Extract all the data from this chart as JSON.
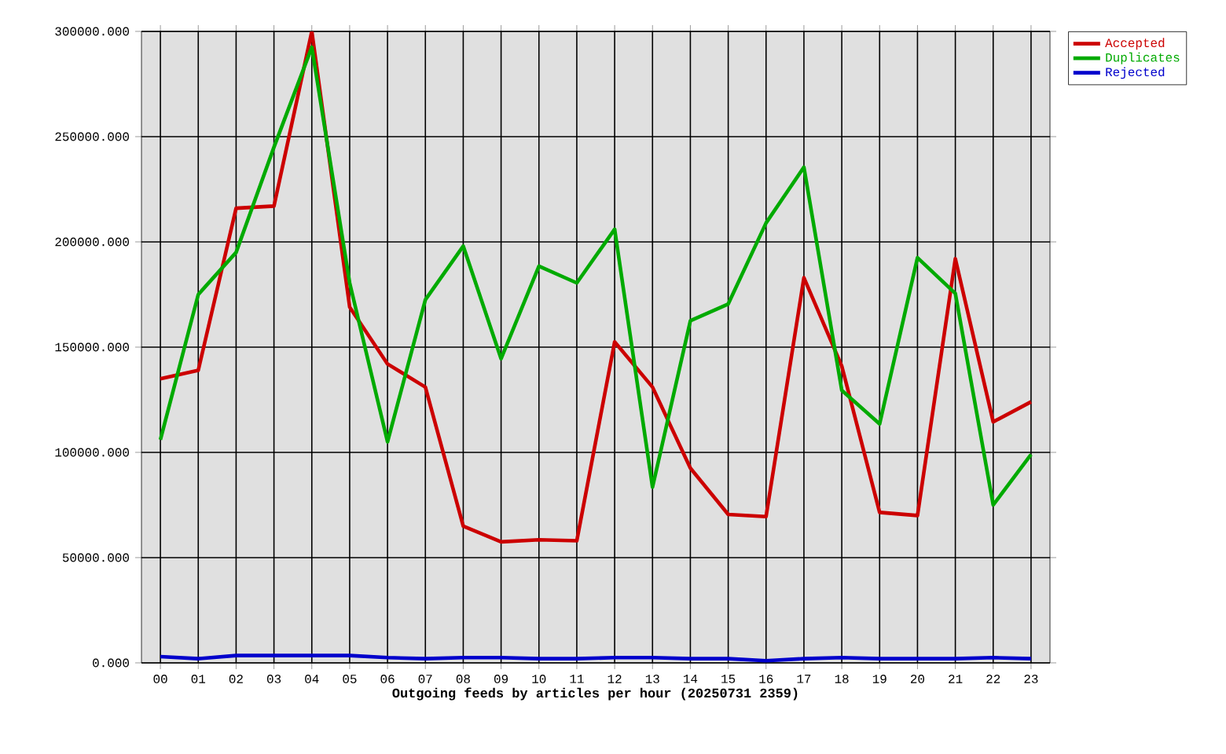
{
  "chart_data": {
    "type": "line",
    "xlabel": "Outgoing feeds by articles per hour (20250731 2359)",
    "categories": [
      "00",
      "01",
      "02",
      "03",
      "04",
      "05",
      "06",
      "07",
      "08",
      "09",
      "10",
      "11",
      "12",
      "13",
      "14",
      "15",
      "16",
      "17",
      "18",
      "19",
      "20",
      "21",
      "22",
      "23"
    ],
    "series": [
      {
        "name": "Accepted",
        "color": "#cc0000",
        "values": [
          135000,
          139000,
          216000,
          217000,
          300000,
          169000,
          142000,
          131000,
          65000,
          57500,
          58500,
          58000,
          152500,
          131000,
          92500,
          70500,
          69500,
          183000,
          141000,
          71500,
          70000,
          192000,
          114500,
          124000
        ]
      },
      {
        "name": "Duplicates",
        "color": "#00aa00",
        "values": [
          106000,
          175000,
          195000,
          245000,
          292500,
          180500,
          105000,
          172500,
          198000,
          144500,
          188500,
          180500,
          206000,
          83500,
          162500,
          170500,
          209000,
          235500,
          129500,
          113500,
          192500,
          175500,
          75000,
          99000
        ]
      },
      {
        "name": "Rejected",
        "color": "#0000cc",
        "values": [
          3000,
          2000,
          3500,
          3500,
          3500,
          3500,
          2500,
          2000,
          2500,
          2500,
          2000,
          2000,
          2500,
          2500,
          2000,
          2000,
          1000,
          2000,
          2500,
          2000,
          2000,
          2000,
          2500,
          2000
        ]
      }
    ],
    "ylim": [
      0,
      300000
    ],
    "yticks": [
      {
        "value": 0,
        "label": "0.000"
      },
      {
        "value": 50000,
        "label": "50000.000"
      },
      {
        "value": 100000,
        "label": "100000.000"
      },
      {
        "value": 150000,
        "label": "150000.000"
      },
      {
        "value": 200000,
        "label": "200000.000"
      },
      {
        "value": 250000,
        "label": "250000.000"
      },
      {
        "value": 300000,
        "label": "300000.000"
      }
    ],
    "grid": true,
    "legend": "top right",
    "marker": "none",
    "line_style": "solid"
  }
}
